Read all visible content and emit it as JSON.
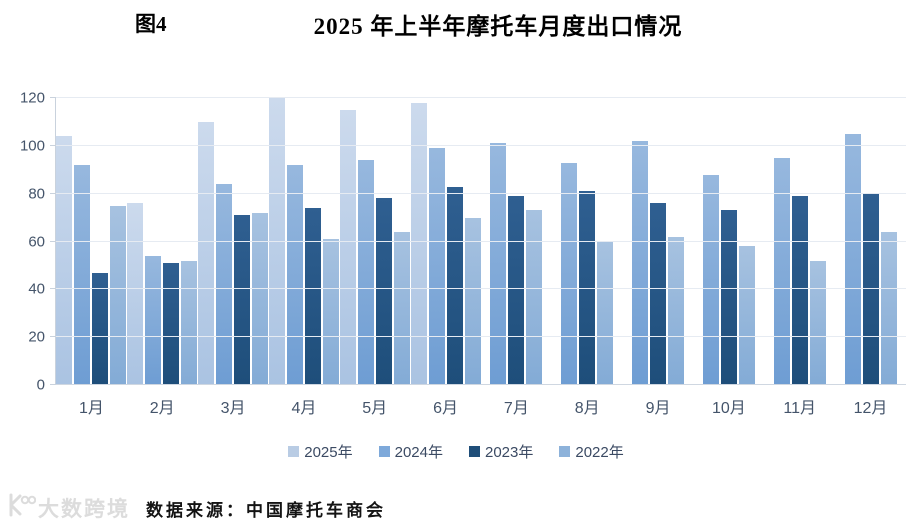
{
  "header": {
    "figure_label": "图4",
    "title": "2025 年上半年摩托车月度出口情况"
  },
  "chart_data": {
    "type": "bar",
    "title": "2025 年上半年摩托车月度出口情况",
    "categories": [
      "1月",
      "2月",
      "3月",
      "4月",
      "5月",
      "6月",
      "7月",
      "8月",
      "9月",
      "10月",
      "11月",
      "12月"
    ],
    "series": [
      {
        "name": "2025年",
        "values": [
          104,
          76,
          110,
          120,
          115,
          118,
          null,
          null,
          null,
          null,
          null,
          null
        ],
        "color_top": "#ccdaed",
        "color_bottom": "#aac3e2",
        "legend_color": "#b9cce4"
      },
      {
        "name": "2024年",
        "values": [
          92,
          54,
          84,
          92,
          94,
          99,
          101,
          93,
          102,
          88,
          95,
          105
        ],
        "color_top": "#97b8de",
        "color_bottom": "#6e9dd3",
        "legend_color": "#7ea9da"
      },
      {
        "name": "2023年",
        "values": [
          47,
          51,
          71,
          74,
          78,
          83,
          79,
          81,
          76,
          73,
          79,
          80
        ],
        "color_top": "#2f5f91",
        "color_bottom": "#1e4e7a",
        "legend_color": "#1f4e79"
      },
      {
        "name": "2022年",
        "values": [
          75,
          52,
          72,
          61,
          64,
          70,
          73,
          60,
          62,
          58,
          52,
          64
        ],
        "color_top": "#a7c2e0",
        "color_bottom": "#83abd6",
        "legend_color": "#8db2da"
      }
    ],
    "ylim": [
      0,
      120
    ],
    "yticks": [
      0,
      20,
      40,
      60,
      80,
      100,
      120
    ],
    "xlabel": "",
    "ylabel": "",
    "grid": true,
    "legend_position": "bottom",
    "axis_text_color": "#44546a",
    "gridline_color": "#e6ebf2"
  },
  "footer": {
    "logo_text": "大数跨境",
    "source_label": "数据来源：中国摩托车商会"
  }
}
